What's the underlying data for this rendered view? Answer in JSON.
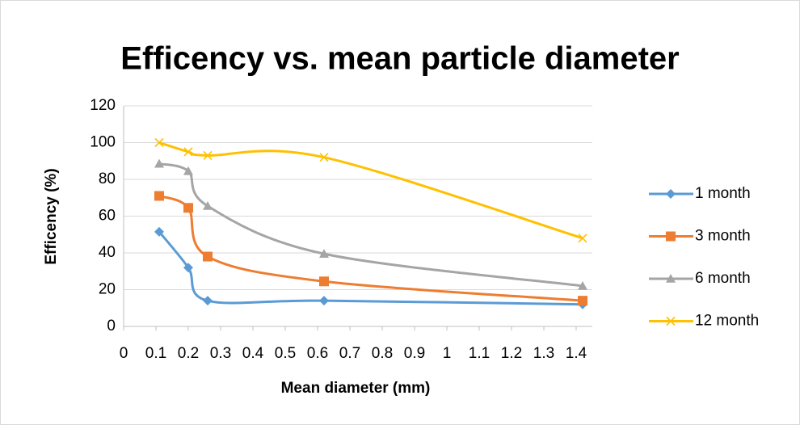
{
  "chart_data": {
    "type": "scatter_smooth",
    "title": "Efficency vs. mean particle diameter",
    "xlabel": "Mean diameter (mm)",
    "ylabel": "Efficency (%)",
    "x": [
      0.11,
      0.2,
      0.26,
      0.62,
      1.42
    ],
    "series": [
      {
        "name": "1 month",
        "color": "#5b9bd5",
        "marker": "diamond",
        "values": [
          51.5,
          32,
          14,
          14,
          12
        ]
      },
      {
        "name": "3 month",
        "color": "#ed7d31",
        "marker": "square",
        "values": [
          71,
          64.5,
          38,
          24.5,
          14
        ]
      },
      {
        "name": "6 month",
        "color": "#a5a5a5",
        "marker": "triangle",
        "values": [
          88.5,
          84.5,
          65.5,
          39.5,
          22
        ]
      },
      {
        "name": "12 month",
        "color": "#ffc000",
        "marker": "x",
        "values": [
          100,
          95,
          93,
          92,
          48
        ]
      }
    ],
    "xlim": [
      0,
      1.45
    ],
    "xticks": [
      0,
      0.1,
      0.2,
      0.3,
      0.4,
      0.5,
      0.6,
      0.7,
      0.8,
      0.9,
      1,
      1.1,
      1.2,
      1.3,
      1.4
    ],
    "ylim": [
      0,
      120
    ],
    "yticks": [
      0,
      20,
      40,
      60,
      80,
      100,
      120
    ],
    "grid": true,
    "legend": "right"
  }
}
